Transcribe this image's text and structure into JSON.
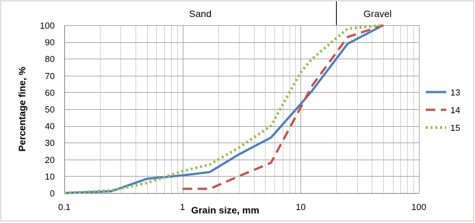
{
  "chart_data": {
    "type": "line",
    "xscale": "log",
    "xlim": [
      0.1,
      100
    ],
    "ylim": [
      0,
      100
    ],
    "xticks": [
      "0.1",
      "1",
      "10",
      "100"
    ],
    "yticks": [
      "0",
      "10",
      "20",
      "30",
      "40",
      "50",
      "60",
      "70",
      "80",
      "90",
      "100"
    ],
    "xlabel": "Grain size, mm",
    "ylabel": "Percentage fine, %",
    "grid": true,
    "legend_position": "right",
    "zones": [
      {
        "label": "Sand",
        "from": 0.1,
        "to": 20
      },
      {
        "label": "Gravel",
        "from": 20,
        "to": 100
      }
    ],
    "series": [
      {
        "name": "13",
        "color": "#4a7ebb",
        "dash": "solid",
        "x": [
          0.1,
          0.25,
          0.5,
          1.0,
          1.7,
          3.0,
          5.6,
          10,
          12.5,
          25,
          50
        ],
        "y": [
          0,
          1,
          8.5,
          10.5,
          12.5,
          23,
          33,
          53,
          61,
          89,
          100
        ]
      },
      {
        "name": "14",
        "color": "#c0504d",
        "dash": "dashed",
        "x": [
          1.0,
          1.7,
          3.0,
          5.6,
          10,
          12.5,
          25,
          50
        ],
        "y": [
          2.5,
          2.5,
          10,
          18,
          51,
          64,
          93,
          100
        ]
      },
      {
        "name": "15",
        "color": "#9bbb59",
        "dash": "dotted",
        "x": [
          0.1,
          0.25,
          0.5,
          1.0,
          1.7,
          3.0,
          5.6,
          10,
          12.5,
          25,
          50
        ],
        "y": [
          0,
          1.5,
          6,
          13,
          17,
          27,
          40,
          72,
          80,
          98,
          100
        ]
      }
    ]
  }
}
